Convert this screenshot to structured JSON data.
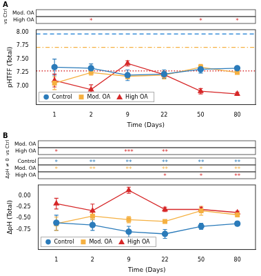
{
  "chart_data": [
    {
      "type": "line",
      "panel": "A",
      "y_label": "pHTFF (Total)",
      "x_label": "Time (Days)",
      "categories": [
        1,
        2,
        9,
        22,
        50,
        80
      ],
      "ylim": [
        6.65,
        8.05
      ],
      "yticks": [
        {
          "value": 7,
          "label": "7.00"
        },
        {
          "value": 7.25,
          "label": "7.25"
        },
        {
          "value": 7.5,
          "label": "7.50"
        },
        {
          "value": 7.75,
          "label": "7.75"
        },
        {
          "value": 8,
          "label": "8.00"
        }
      ],
      "grid": false,
      "legend": "lower left",
      "series": [
        {
          "name": "Control",
          "color": "#2b7bba",
          "marker": "circle",
          "values": [
            7.35,
            7.33,
            7.2,
            7.22,
            7.31,
            7.33
          ],
          "errors": [
            0.15,
            0.08,
            0.1,
            0.08,
            0.07,
            0.03
          ]
        },
        {
          "name": "Mod. OA",
          "color": "#f5b041",
          "marker": "square",
          "values": [
            7.05,
            7.25,
            7.18,
            7.2,
            7.35,
            7.25
          ],
          "errors": [
            0.12,
            0.05,
            0.05,
            0.07,
            0.05,
            0.03
          ]
        },
        {
          "name": "High OA",
          "color": "#d62728",
          "marker": "triangle",
          "values": [
            7.1,
            6.93,
            7.42,
            7.21,
            6.9,
            6.85
          ],
          "errors": [
            0.12,
            0.09,
            0.05,
            0.05,
            0.05,
            0.03
          ]
        }
      ],
      "reference_lines": [
        {
          "value": 7.97,
          "color": "#3b8fd9",
          "line_style": "dashed"
        },
        {
          "value": 7.72,
          "color": "#f5b041",
          "line_style": "dashdot"
        },
        {
          "value": 7.28,
          "color": "#d62728",
          "line_style": "dotted"
        }
      ],
      "significance": [
        {
          "title": "vs Ctrl",
          "rows": [
            {
              "name": "Mod. OA",
              "color": "#d62728",
              "marks": [
                null,
                null,
                null,
                null,
                null,
                null
              ]
            },
            {
              "name": "High OA",
              "color": "#d62728",
              "marks": [
                null,
                "*",
                null,
                null,
                "*",
                "*"
              ]
            }
          ]
        }
      ]
    },
    {
      "type": "line",
      "panel": "B",
      "y_label": "ΔpH (Total)",
      "x_label": "Time (Days)",
      "categories": [
        1,
        2,
        9,
        22,
        50,
        80
      ],
      "ylim": [
        -1.2,
        0.25
      ],
      "yticks": [
        {
          "value": -0.75,
          "label": "-0.75"
        },
        {
          "value": -0.5,
          "label": "-0.50"
        },
        {
          "value": -0.25,
          "label": "-0.25"
        },
        {
          "value": 0,
          "label": "0.00"
        }
      ],
      "grid": false,
      "legend": "lower left",
      "series": [
        {
          "name": "Control",
          "color": "#2b7bba",
          "marker": "circle",
          "values": [
            -0.6,
            -0.65,
            -0.8,
            -0.85,
            -0.68,
            -0.62
          ],
          "errors": [
            0.17,
            0.12,
            0.12,
            0.1,
            0.07,
            0.05
          ]
        },
        {
          "name": "Mod. OA",
          "color": "#f5b041",
          "marker": "square",
          "values": [
            -0.62,
            -0.45,
            -0.53,
            -0.57,
            -0.33,
            -0.42
          ],
          "errors": [
            0.15,
            0.08,
            0.07,
            0.03,
            0.1,
            0.05
          ]
        },
        {
          "name": "High OA",
          "color": "#d62728",
          "marker": "triangle",
          "values": [
            -0.17,
            -0.33,
            0.13,
            -0.3,
            -0.3,
            -0.37
          ],
          "errors": [
            0.12,
            0.15,
            0.07,
            0.05,
            0.05,
            0.03
          ]
        }
      ],
      "significance": [
        {
          "title": "vs Ctrl",
          "rows": [
            {
              "name": "Mod. OA",
              "color": "#d62728",
              "marks": [
                null,
                null,
                null,
                null,
                null,
                null
              ]
            },
            {
              "name": "High OA",
              "color": "#d62728",
              "marks": [
                "*",
                null,
                "***",
                "**",
                null,
                null
              ]
            }
          ]
        },
        {
          "title": "ΔpH ≠ 0",
          "rows": [
            {
              "name": "Control",
              "color": "#2b7bba",
              "marks": [
                "*",
                "**",
                "**",
                "**",
                "**",
                "**"
              ]
            },
            {
              "name": "Mod. OA",
              "color": "#f5b041",
              "marks": [
                "*",
                "**",
                "**",
                "**",
                "*",
                "**"
              ]
            },
            {
              "name": "High OA",
              "color": "#d62728",
              "marks": [
                null,
                null,
                null,
                "*",
                "*",
                "**"
              ]
            }
          ]
        }
      ]
    }
  ]
}
